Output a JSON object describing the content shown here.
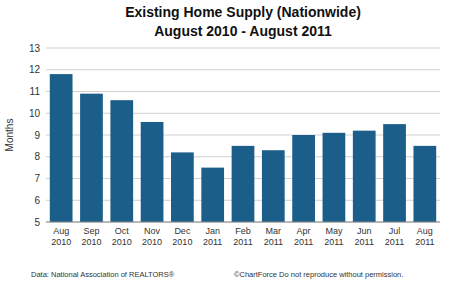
{
  "chart_data": {
    "type": "bar",
    "title": "Existing Home Supply (Nationwide)",
    "subtitle": "August 2010 - August 2011",
    "y_label": "Months",
    "categories": [
      "Aug\n2010",
      "Sep\n2010",
      "Oct\n2010",
      "Nov\n2010",
      "Dec\n2010",
      "Jan\n2011",
      "Feb\n2011",
      "Mar\n2011",
      "Apr\n2011",
      "May\n2011",
      "Jun\n2011",
      "Jul\n2011",
      "Aug\n2011"
    ],
    "values": [
      11.8,
      10.9,
      10.6,
      9.6,
      8.2,
      7.5,
      8.5,
      8.3,
      9.0,
      9.1,
      9.2,
      9.5,
      8.5
    ],
    "color": "#1b5e8a",
    "ylim": [
      5,
      13
    ],
    "yticks": [
      5,
      6,
      7,
      8,
      9,
      10,
      11,
      12,
      13
    ],
    "grid": true,
    "annotations": [
      "Data: National Association of REALTORS®",
      "©ChartForce  Do not reproduce without permission."
    ]
  }
}
